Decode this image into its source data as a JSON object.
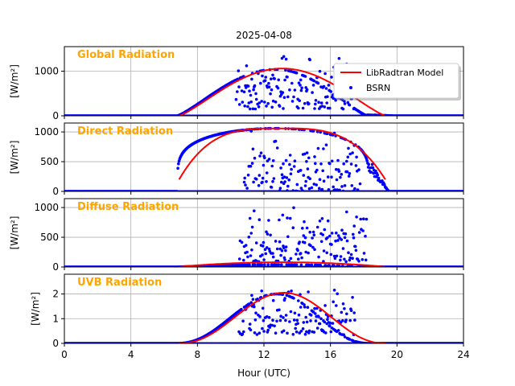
{
  "chart_data": {
    "type": "line",
    "title": "2025-04-08",
    "xlabel": "Hour (UTC)",
    "xlim": [
      0,
      24
    ],
    "xticks": [
      0,
      4,
      8,
      12,
      16,
      20,
      24
    ],
    "grid": true,
    "legend": {
      "placement": "top-right",
      "entries": [
        "LibRadtran Model",
        "BSRN"
      ]
    },
    "colors": {
      "model": "#ff0000",
      "measured": "#0000ff",
      "panel_label": "#ffa500"
    },
    "panels": [
      {
        "label": "Global Radiation",
        "ylabel": "[W/m²]",
        "ylim": [
          0,
          1550
        ],
        "yticks": [
          0,
          1000
        ],
        "model": {
          "sunrise": 6.9,
          "sunset": 19.3,
          "peak_x": 13.1,
          "peak_y": 1060,
          "exponent": 1.2
        },
        "measured": {
          "sunrise": 6.8,
          "sunset": 18.2,
          "peak_x": 12.7,
          "peak_y": 1040,
          "exponent": 1.2,
          "cloud_start": 10.3,
          "cloud_end": 17.7,
          "cloud_low": 150,
          "cloud_high": 1450,
          "tail_end": 19.8
        }
      },
      {
        "label": "Direct Radiation",
        "ylabel": "[W/m²]",
        "ylim": [
          0,
          1150
        ],
        "yticks": [
          0,
          500,
          1000
        ],
        "model": {
          "sunrise": 6.9,
          "sunset": 19.3,
          "peak_x": 13.1,
          "peak_y": 1060,
          "exponent": 0.18,
          "end_y": 200
        },
        "measured": {
          "sunrise": 6.8,
          "sunset": 18.3,
          "peak_x": 12.7,
          "peak_y": 1060,
          "exponent": 0.2,
          "cloud_start": 10.8,
          "cloud_end": 17.8,
          "cloud_low": 0,
          "cloud_high": 1050,
          "tail_end": 19.5
        }
      },
      {
        "label": "Diffuse Radiation",
        "ylabel": "[W/m²]",
        "ylim": [
          0,
          1150
        ],
        "yticks": [
          0,
          500,
          1000
        ],
        "model": {
          "sunrise": 6.9,
          "sunset": 19.3,
          "peak_x": 13.1,
          "peak_y": 80,
          "exponent": 0.8
        },
        "measured": {
          "sunrise": 6.8,
          "sunset": 18.5,
          "peak_x": 12.7,
          "peak_y": 40,
          "exponent": 1.0,
          "cloud_start": 10.5,
          "cloud_end": 18.2,
          "cloud_low": 90,
          "cloud_high": 1020,
          "tail_end": 20.0
        }
      },
      {
        "label": "UVB Radiation",
        "ylabel": "[W/m²]",
        "ylim": [
          0,
          2.8
        ],
        "yticks": [
          0,
          1,
          2
        ],
        "model": {
          "sunrise": 6.9,
          "sunset": 19.3,
          "peak_x": 13.2,
          "peak_y": 2.05,
          "exponent": 2.2
        },
        "measured": {
          "sunrise": 6.8,
          "sunset": 18.3,
          "peak_x": 12.8,
          "peak_y": 2.0,
          "exponent": 2.2,
          "cloud_start": 10.5,
          "cloud_end": 17.5,
          "cloud_low": 0.35,
          "cloud_high": 2.5,
          "tail_end": 18.6
        }
      }
    ]
  }
}
